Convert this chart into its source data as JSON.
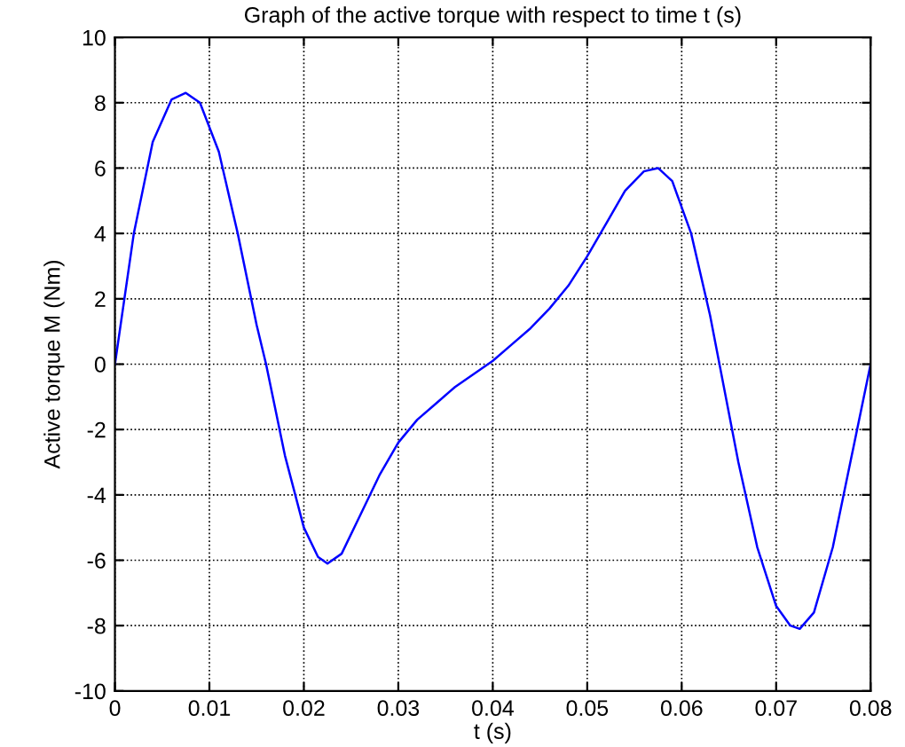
{
  "chart_data": {
    "type": "line",
    "title": "Graph of the active torque with respect to time t (s)",
    "xlabel": "t (s)",
    "ylabel": "Active torque M (Nm)",
    "x": [
      0,
      0.002,
      0.004,
      0.006,
      0.0075,
      0.009,
      0.011,
      0.013,
      0.015,
      0.016,
      0.018,
      0.02,
      0.0215,
      0.0225,
      0.024,
      0.026,
      0.028,
      0.03,
      0.032,
      0.034,
      0.036,
      0.038,
      0.04,
      0.042,
      0.044,
      0.046,
      0.048,
      0.05,
      0.052,
      0.054,
      0.056,
      0.0575,
      0.059,
      0.061,
      0.063,
      0.064,
      0.066,
      0.068,
      0.07,
      0.0715,
      0.0725,
      0.074,
      0.076,
      0.078,
      0.08
    ],
    "series": [
      {
        "color": "#0000ff",
        "values": [
          0,
          4.0,
          6.8,
          8.1,
          8.3,
          8.0,
          6.5,
          4.0,
          1.2,
          0,
          -2.8,
          -5.0,
          -5.9,
          -6.1,
          -5.8,
          -4.6,
          -3.4,
          -2.4,
          -1.7,
          -1.2,
          -0.7,
          -0.3,
          0.1,
          0.6,
          1.1,
          1.7,
          2.4,
          3.3,
          4.3,
          5.3,
          5.9,
          6.0,
          5.6,
          4.0,
          1.5,
          0,
          -3.0,
          -5.6,
          -7.4,
          -8.0,
          -8.1,
          -7.6,
          -5.6,
          -2.8,
          0
        ]
      }
    ],
    "xlim": [
      0,
      0.08
    ],
    "xticks": [
      0,
      0.01,
      0.02,
      0.03,
      0.04,
      0.05,
      0.06,
      0.07,
      0.08
    ],
    "ylim": [
      -10,
      10
    ],
    "yticks": [
      -10,
      -8,
      -6,
      -4,
      -2,
      0,
      2,
      4,
      6,
      8,
      10
    ],
    "grid": true,
    "line_style": "solid",
    "marker": "none"
  }
}
